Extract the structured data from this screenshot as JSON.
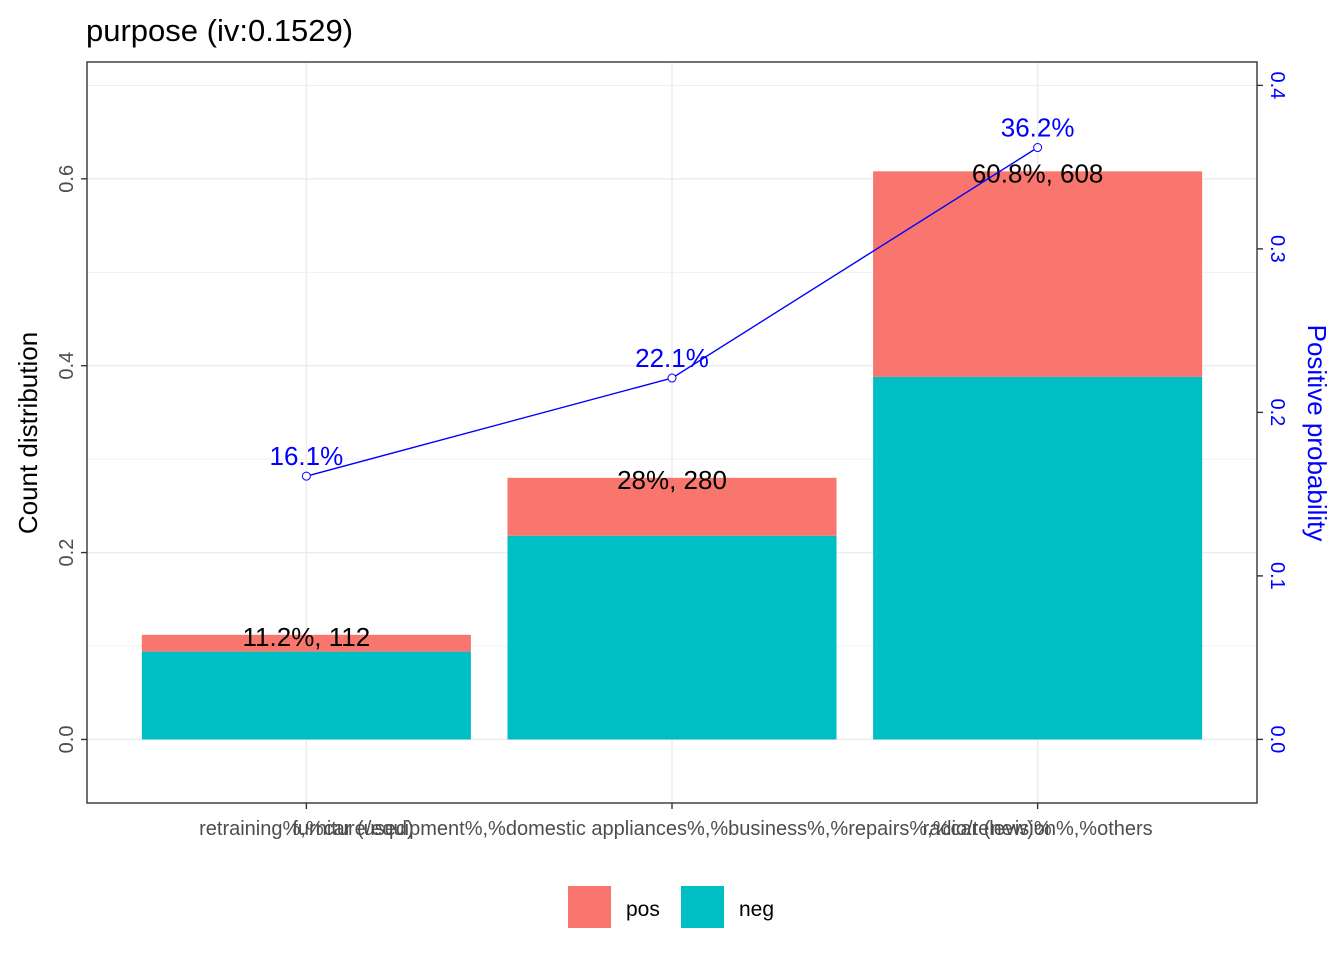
{
  "chart_data": {
    "type": "bar",
    "title": "purpose  (iv:0.1529)",
    "categories": [
      "retraining%,%car (used)",
      "furniture/equipment%,%domestic appliances%,%business%,%repairs%,%car (new)%",
      "radio/television%,%others"
    ],
    "series": [
      {
        "name": "neg",
        "color": "#00BFC4",
        "values": [
          0.094,
          0.218,
          0.388
        ]
      },
      {
        "name": "pos",
        "color": "#F8766D",
        "values": [
          0.018,
          0.062,
          0.22
        ]
      }
    ],
    "bar_labels": [
      "11.2%, 112",
      "28%, 280",
      "60.8%, 608"
    ],
    "line": {
      "name": "Positive probability",
      "color": "#0000FF",
      "values": [
        0.161,
        0.221,
        0.362
      ],
      "labels": [
        "16.1%",
        "22.1%",
        "36.2%"
      ]
    },
    "ylabel": "Count distribution",
    "y2label": "Positive probability",
    "xlabel": "",
    "ylim": [
      -0.068,
      0.725
    ],
    "y2lim": [
      -0.0389,
      0.4143
    ],
    "yticks": [
      "0.0",
      "0.2",
      "0.4",
      "0.6"
    ],
    "y2ticks": [
      "0.0",
      "0.1",
      "0.2",
      "0.3",
      "0.4"
    ],
    "legend": {
      "position": "bottom",
      "entries": [
        "pos",
        "neg"
      ]
    },
    "grid": true
  }
}
